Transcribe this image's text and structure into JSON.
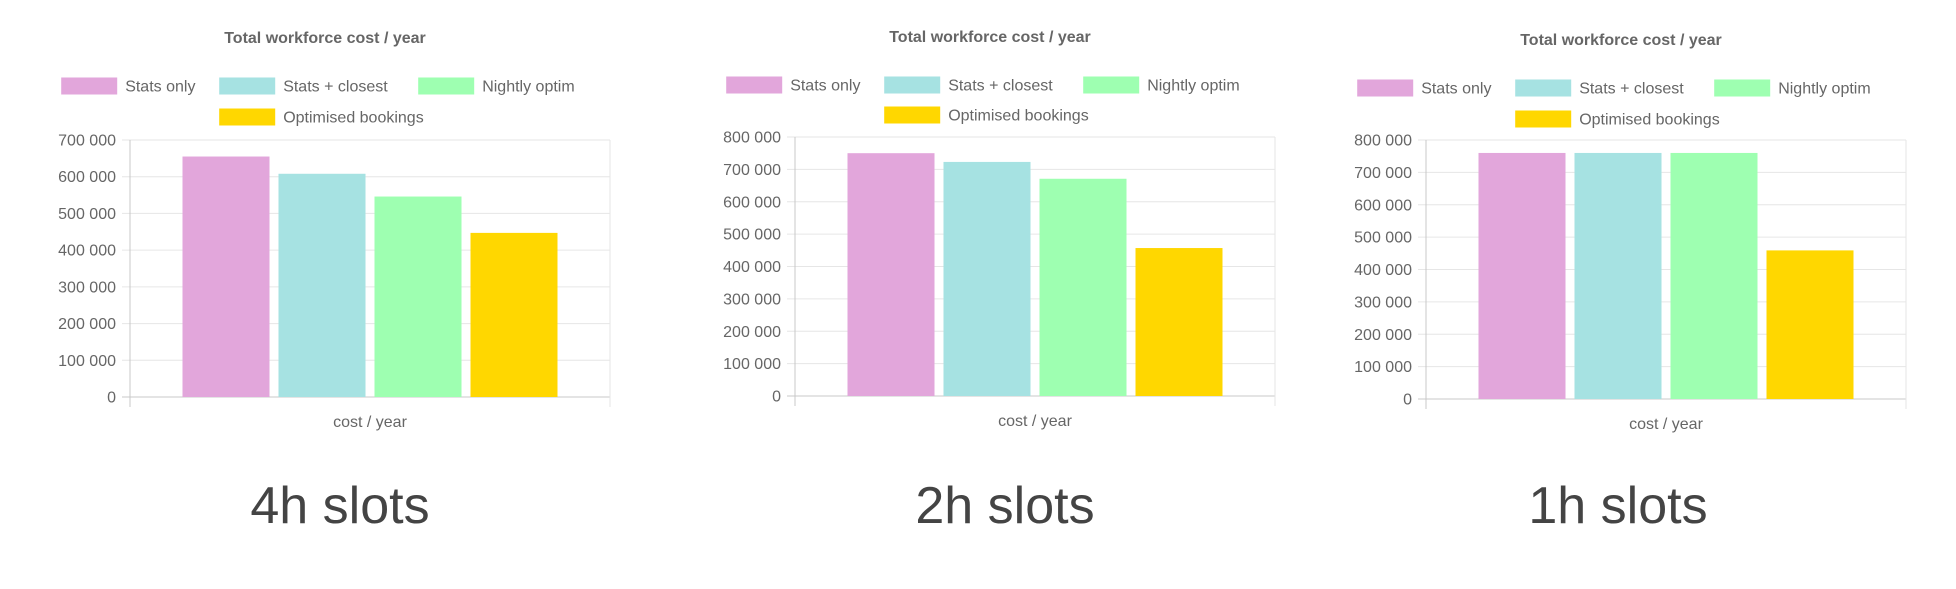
{
  "chart_data": [
    {
      "type": "bar",
      "title": "Total workforce cost / year",
      "xlabel": "cost / year",
      "ylabel": "",
      "categories": [
        "cost / year"
      ],
      "series": [
        {
          "name": "Stats only",
          "values": [
            655000
          ],
          "color": "#e2a6db"
        },
        {
          "name": "Stats + closest",
          "values": [
            608000
          ],
          "color": "#a6e2e2"
        },
        {
          "name": "Nightly optim",
          "values": [
            546000
          ],
          "color": "#9effb1"
        },
        {
          "name": "Optimised bookings",
          "values": [
            447000
          ],
          "color": "#ffd700"
        }
      ],
      "ylim": [
        0,
        700000
      ],
      "yticks": [
        "0",
        "100 000",
        "200 000",
        "300 000",
        "400 000",
        "500 000",
        "600 000",
        "700 000"
      ],
      "grid": true,
      "legend_position": "top",
      "caption": "4h slots"
    },
    {
      "type": "bar",
      "title": "Total workforce cost / year",
      "xlabel": "cost / year",
      "ylabel": "",
      "categories": [
        "cost / year"
      ],
      "series": [
        {
          "name": "Stats only",
          "values": [
            750000
          ],
          "color": "#e2a6db"
        },
        {
          "name": "Stats + closest",
          "values": [
            723000
          ],
          "color": "#a6e2e2"
        },
        {
          "name": "Nightly optim",
          "values": [
            671000
          ],
          "color": "#9effb1"
        },
        {
          "name": "Optimised bookings",
          "values": [
            457000
          ],
          "color": "#ffd700"
        }
      ],
      "ylim": [
        0,
        800000
      ],
      "yticks": [
        "0",
        "100 000",
        "200 000",
        "300 000",
        "400 000",
        "500 000",
        "600 000",
        "700 000",
        "800 000"
      ],
      "grid": true,
      "legend_position": "top",
      "caption": "2h slots"
    },
    {
      "type": "bar",
      "title": "Total workforce cost / year",
      "xlabel": "cost / year",
      "ylabel": "",
      "categories": [
        "cost / year"
      ],
      "series": [
        {
          "name": "Stats only",
          "values": [
            760000
          ],
          "color": "#e2a6db"
        },
        {
          "name": "Stats + closest",
          "values": [
            760000
          ],
          "color": "#a6e2e2"
        },
        {
          "name": "Nightly optim",
          "values": [
            760000
          ],
          "color": "#9effb1"
        },
        {
          "name": "Optimised bookings",
          "values": [
            459000
          ],
          "color": "#ffd700"
        }
      ],
      "ylim": [
        0,
        800000
      ],
      "yticks": [
        "0",
        "100 000",
        "200 000",
        "300 000",
        "400 000",
        "500 000",
        "600 000",
        "700 000",
        "800 000"
      ],
      "grid": true,
      "legend_position": "top",
      "caption": "1h slots"
    }
  ]
}
